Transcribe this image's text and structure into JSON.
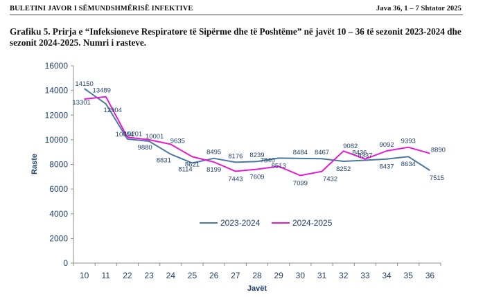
{
  "header": {
    "left": "BULETINI JAVOR I SËMUNDSHMËRISË INFEKTIVE",
    "right": "Java 36,  1 – 7 Shtator 2025"
  },
  "caption": "Grafiku 5. Prirja e “Infeksioneve Respiratore të Sipërme dhe të Poshtëme” në javët 10 – 36 të sezonit 2023-2024 dhe sezonit 2024-2025. Numri i rasteve.",
  "chart_data": {
    "type": "line",
    "title": "",
    "xlabel": "Javët",
    "ylabel": "Raste",
    "ylim": [
      0,
      16000
    ],
    "yticks": [
      "0",
      "2000",
      "4000",
      "6000",
      "8000",
      "10000",
      "12000",
      "14000",
      "16000"
    ],
    "categories": [
      "10",
      "11",
      "22",
      "23",
      "24",
      "25",
      "26",
      "27",
      "28",
      "29",
      "30",
      "31",
      "32",
      "33",
      "34",
      "35",
      "36"
    ],
    "series": [
      {
        "name": "2023-2024",
        "color": "#4a78a0",
        "values": [
          14150,
          12904,
          10054,
          9880,
          8831,
          8114,
          8495,
          8176,
          8239,
          8513,
          8484,
          8467,
          8252,
          8337,
          8437,
          8634,
          7515
        ],
        "labels": [
          "14150",
          "12904",
          "10054",
          "9880",
          "8831",
          "8114",
          "8495",
          "8176",
          "8239",
          "8513",
          "8484",
          "8467",
          "8252",
          "8337",
          "8437",
          "8634",
          "7515"
        ]
      },
      {
        "name": "2024-2025",
        "color": "#e61ad0",
        "values": [
          13301,
          13489,
          10201,
          10001,
          9635,
          8621,
          8199,
          7443,
          7609,
          7840,
          7099,
          7432,
          9082,
          8436,
          9092,
          9393,
          8890
        ],
        "labels": [
          "13301",
          "13489",
          "10201",
          "10001",
          "9635",
          "8621",
          "8199",
          "7443",
          "7609",
          "7840",
          "7099",
          "7432",
          "9082",
          "8436",
          "9092",
          "9393",
          "8890"
        ]
      }
    ],
    "legend_position": "bottom-center"
  }
}
